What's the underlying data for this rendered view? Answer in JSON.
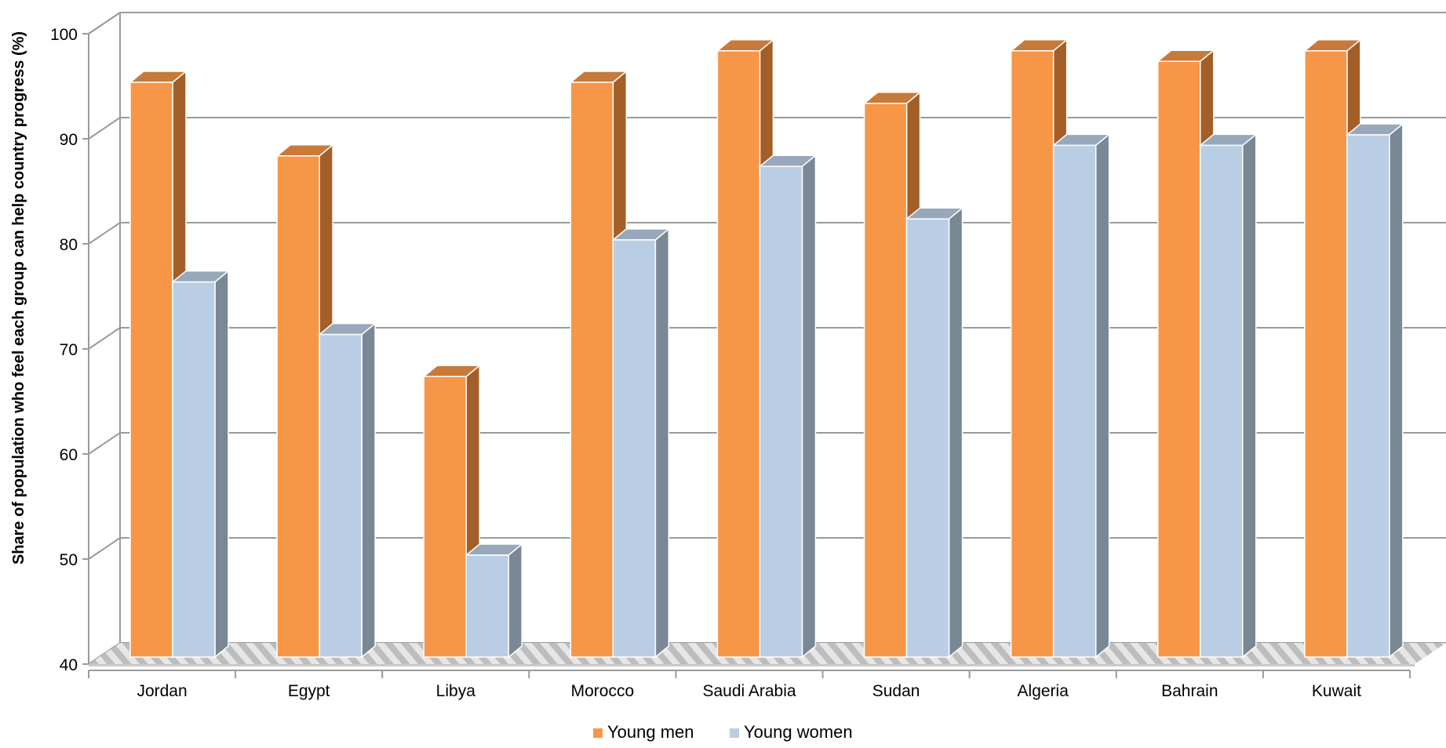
{
  "chart_data": {
    "type": "bar",
    "style": "3d-clustered-column",
    "categories": [
      "Jordan",
      "Egypt",
      "Libya",
      "Morocco",
      "Saudi Arabia",
      "Sudan",
      "Algeria",
      "Bahrain",
      "Kuwait"
    ],
    "series": [
      {
        "name": "Young men",
        "values": [
          95,
          88,
          67,
          95,
          98,
          93,
          98,
          97,
          98
        ]
      },
      {
        "name": "Young women",
        "values": [
          76,
          71,
          50,
          80,
          87,
          82,
          89,
          89,
          90
        ]
      }
    ],
    "xlabel": "",
    "ylabel": "Share of population who feel each group can help country progress (%)",
    "ylim": [
      40,
      100
    ],
    "yticks": [
      40,
      50,
      60,
      70,
      80,
      90,
      100
    ],
    "grid": true,
    "legend_position": "bottom"
  },
  "colors": {
    "men_front": "#f79646",
    "men_side": "#a45e27",
    "men_top": "#c77a3a",
    "women_front": "#b9cde5",
    "women_side": "#7a8794",
    "women_top": "#98a8bb",
    "grid": "#9a9a9a"
  }
}
